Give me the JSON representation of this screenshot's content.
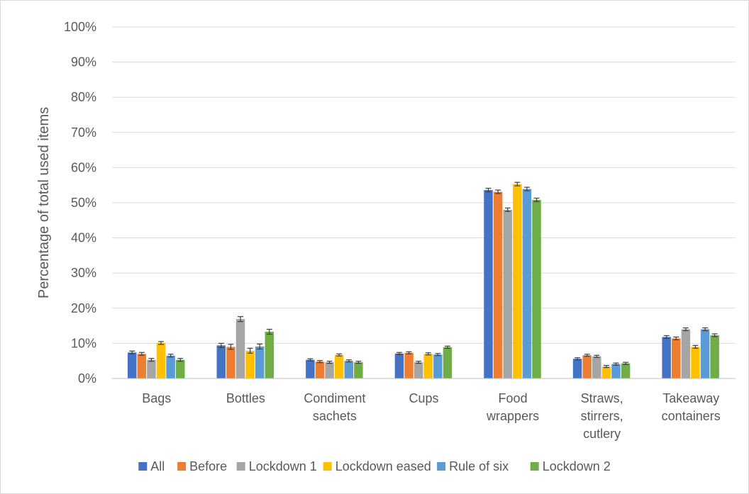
{
  "chart_data": {
    "type": "bar",
    "title": "",
    "xlabel": "",
    "ylabel": "Percentage of total used items",
    "ylim": [
      0,
      100
    ],
    "yticks": [
      "0%",
      "10%",
      "20%",
      "30%",
      "40%",
      "50%",
      "60%",
      "70%",
      "80%",
      "90%",
      "100%"
    ],
    "grid": true,
    "legend_position": "bottom",
    "categories": [
      [
        "Bags"
      ],
      [
        "Bottles"
      ],
      [
        "Condiment",
        "sachets"
      ],
      [
        "Cups"
      ],
      [
        "Food",
        "wrappers"
      ],
      [
        "Straws,",
        "stirrers,",
        "cutlery"
      ],
      [
        "Takeaway",
        "containers"
      ]
    ],
    "series": [
      {
        "name": "All",
        "color": "#4472C4",
        "values": [
          7.4,
          9.4,
          5.3,
          7.1,
          53.6,
          5.6,
          11.8
        ],
        "errors": [
          0.4,
          0.6,
          0.3,
          0.3,
          0.5,
          0.3,
          0.4
        ]
      },
      {
        "name": "Before",
        "color": "#ED7D31",
        "values": [
          7.0,
          9.0,
          4.8,
          7.3,
          53.1,
          6.6,
          11.4
        ],
        "errors": [
          0.4,
          0.7,
          0.3,
          0.3,
          0.5,
          0.3,
          0.4
        ]
      },
      {
        "name": "Lockdown 1",
        "color": "#A5A5A5",
        "values": [
          5.3,
          16.9,
          4.6,
          4.6,
          48.0,
          6.3,
          14.0
        ],
        "errors": [
          0.4,
          0.7,
          0.3,
          0.3,
          0.5,
          0.3,
          0.4
        ]
      },
      {
        "name": "Lockdown eased",
        "color": "#FFC000",
        "values": [
          10.1,
          7.9,
          6.7,
          7.0,
          55.3,
          3.4,
          9.0
        ],
        "errors": [
          0.4,
          0.7,
          0.3,
          0.3,
          0.5,
          0.3,
          0.4
        ]
      },
      {
        "name": "Rule of six",
        "color": "#5B9BD5",
        "values": [
          6.5,
          9.1,
          5.0,
          6.8,
          53.9,
          4.1,
          14.0
        ],
        "errors": [
          0.4,
          0.7,
          0.3,
          0.3,
          0.5,
          0.3,
          0.4
        ]
      },
      {
        "name": "Lockdown 2",
        "color": "#70AD47",
        "values": [
          5.3,
          13.3,
          4.6,
          8.9,
          50.8,
          4.3,
          12.3
        ],
        "errors": [
          0.4,
          0.7,
          0.3,
          0.3,
          0.5,
          0.3,
          0.4
        ]
      }
    ],
    "grid_color": "#d9d9d9",
    "axis_color": "#bfbfbf",
    "error_bar_color": "#404040"
  }
}
